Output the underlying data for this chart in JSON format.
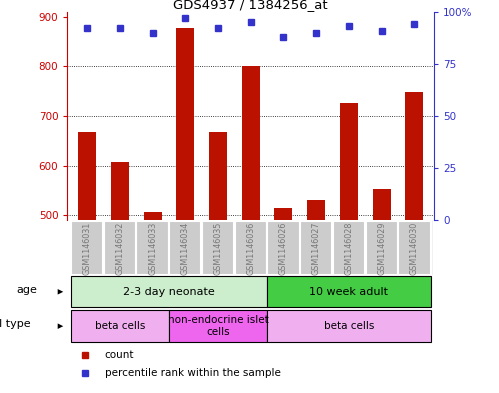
{
  "title": "GDS4937 / 1384256_at",
  "samples": [
    "GSM1146031",
    "GSM1146032",
    "GSM1146033",
    "GSM1146034",
    "GSM1146035",
    "GSM1146036",
    "GSM1146026",
    "GSM1146027",
    "GSM1146028",
    "GSM1146029",
    "GSM1146030"
  ],
  "counts": [
    667,
    608,
    507,
    878,
    668,
    800,
    515,
    531,
    727,
    553,
    748
  ],
  "percentile_ranks": [
    92,
    92,
    90,
    97,
    92,
    95,
    88,
    90,
    93,
    91,
    94
  ],
  "ylim_left": [
    490,
    910
  ],
  "ylim_right": [
    0,
    100
  ],
  "yticks_left": [
    500,
    600,
    700,
    800,
    900
  ],
  "yticks_right": [
    0,
    25,
    50,
    75,
    100
  ],
  "bar_color": "#bb1100",
  "dot_color": "#3333cc",
  "bg_color": "#ffffff",
  "age_groups": [
    {
      "label": "2-3 day neonate",
      "start": 0,
      "end": 6,
      "color": "#cceecc"
    },
    {
      "label": "10 week adult",
      "start": 6,
      "end": 11,
      "color": "#44cc44"
    }
  ],
  "cell_type_groups": [
    {
      "label": "beta cells",
      "start": 0,
      "end": 3,
      "color": "#f0b0f0"
    },
    {
      "label": "non-endocrine islet\ncells",
      "start": 3,
      "end": 6,
      "color": "#ee66ee"
    },
    {
      "label": "beta cells",
      "start": 6,
      "end": 11,
      "color": "#f0b0f0"
    }
  ],
  "tick_label_color": "#777777",
  "left_axis_color": "#cc0000",
  "right_axis_color": "#3333cc",
  "sample_box_color": "#cccccc",
  "sample_box_edge": "#ffffff",
  "border_color": "#000000"
}
